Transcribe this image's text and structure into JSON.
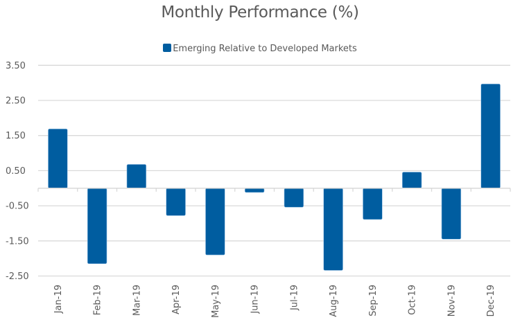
{
  "chart_data": {
    "type": "bar",
    "title": "Monthly Performance (%)",
    "xlabel": "",
    "ylabel": "",
    "categories": [
      "Jan-19",
      "Feb-19",
      "Mar-19",
      "Apr-19",
      "May-19",
      "Jun-19",
      "Jul-19",
      "Aug-19",
      "Sep-19",
      "Oct-19",
      "Nov-19",
      "Dec-19"
    ],
    "series": [
      {
        "name": "Emerging Relative to Developed Markets",
        "color": "#005DA0",
        "values": [
          1.69,
          -2.15,
          0.68,
          -0.78,
          -1.9,
          -0.12,
          -0.54,
          -2.34,
          -0.89,
          0.46,
          -1.45,
          2.97
        ]
      }
    ],
    "yticks": [
      3.5,
      2.5,
      1.5,
      0.5,
      -0.5,
      -1.5,
      -2.5
    ],
    "ytick_labels": [
      "3.50",
      "2.50",
      "1.50",
      "0.50",
      "-0.50",
      "-1.50",
      "-2.50"
    ],
    "ylim": [
      -2.5,
      3.5
    ],
    "grid": true,
    "legend_position": "top-center",
    "colors": {
      "grid": "#D9D9D9",
      "text": "#595959"
    }
  }
}
